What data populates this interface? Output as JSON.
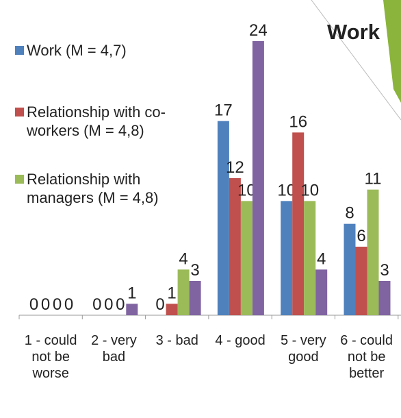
{
  "chart_data": {
    "type": "bar",
    "title": "Work",
    "categories": [
      "1 - could not be worse",
      "2 - very bad",
      "3 - bad",
      "4 - good",
      "5 - very good",
      "6 - could not be better"
    ],
    "series": [
      {
        "name": "Work (M = 4,7)",
        "color": "#4f81bd",
        "values": [
          0,
          0,
          0,
          17,
          10,
          8
        ]
      },
      {
        "name": "Relationship with co-workers (M = 4,8)",
        "color": "#c0504d",
        "values": [
          0,
          0,
          1,
          12,
          16,
          6
        ]
      },
      {
        "name": "Relationship with managers (M = 4,8)",
        "color": "#9bbb59",
        "values": [
          0,
          0,
          4,
          10,
          10,
          11
        ]
      },
      {
        "color": "#8064a2",
        "values": [
          0,
          1,
          3,
          24,
          4,
          3
        ]
      }
    ],
    "legend": "left"
  }
}
